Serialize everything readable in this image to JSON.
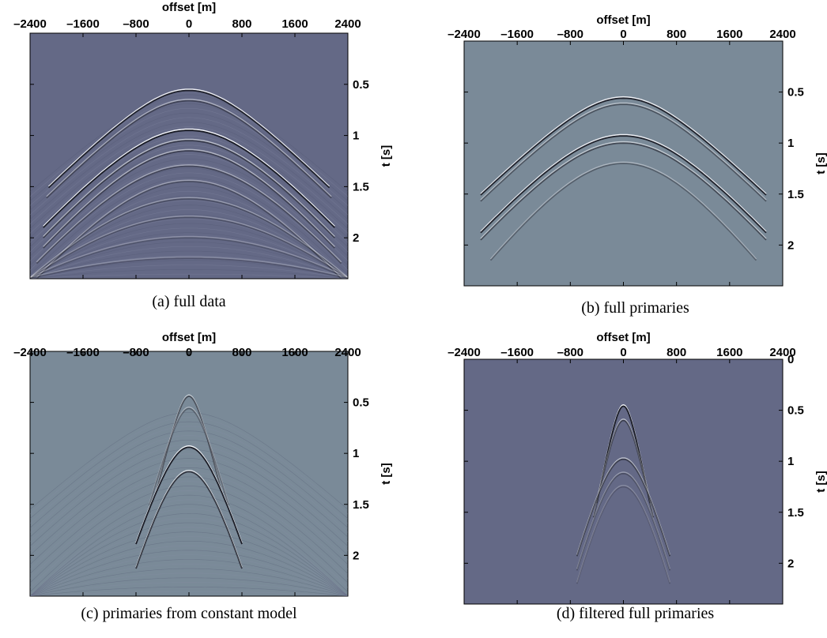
{
  "colors": {
    "bg_dark": "#646986",
    "bg_light": "#7a8a98"
  },
  "chart_data": [
    {
      "type": "heatmap",
      "caption": "(a) full data",
      "xlabel": "offset [m]",
      "ylabel": "t [s]",
      "x_ticks": [
        "–2400",
        "–1600",
        "–800",
        "0",
        "800",
        "1600",
        "2400"
      ],
      "y_ticks": [
        "0.5",
        "1",
        "1.5",
        "2"
      ],
      "xlim": [
        -2400,
        2400
      ],
      "ylim": [
        0,
        2.4
      ],
      "background": "#646986",
      "events": [
        {
          "t0": 0.56,
          "hmax": 2120,
          "amp": 0.85
        },
        {
          "t0": 0.66,
          "hmax": 2150,
          "amp": 0.4
        },
        {
          "t0": 0.95,
          "hmax": 2200,
          "amp": 0.9
        },
        {
          "t0": 1.05,
          "hmax": 2200,
          "amp": 0.5
        },
        {
          "t0": 1.15,
          "hmax": 2200,
          "amp": 0.45
        },
        {
          "t0": 1.3,
          "hmax": 2300,
          "amp": 0.35
        },
        {
          "t0": 1.45,
          "hmax": 2300,
          "amp": 0.3
        },
        {
          "t0": 1.62,
          "hmax": 2400,
          "amp": 0.25
        },
        {
          "t0": 1.8,
          "hmax": 2400,
          "amp": 0.2
        },
        {
          "t0": 2.0,
          "hmax": 2400,
          "amp": 0.18
        },
        {
          "t0": 2.2,
          "hmax": 2400,
          "amp": 0.15
        }
      ]
    },
    {
      "type": "heatmap",
      "caption": "(b) full primaries",
      "xlabel": "offset [m]",
      "ylabel": "t [s]",
      "x_ticks": [
        "–2400",
        "–1600",
        "–800",
        "0",
        "800",
        "1600",
        "2400"
      ],
      "y_ticks": [
        "0.5",
        "1",
        "1.5",
        "2"
      ],
      "xlim": [
        -2400,
        2400
      ],
      "ylim": [
        0,
        2.4
      ],
      "background": "#7a8a98",
      "events": [
        {
          "t0": 0.56,
          "hmax": 2150,
          "amp": 0.85
        },
        {
          "t0": 0.62,
          "hmax": 2150,
          "amp": 0.4
        },
        {
          "t0": 0.93,
          "hmax": 2150,
          "amp": 0.85
        },
        {
          "t0": 1.0,
          "hmax": 2150,
          "amp": 0.5
        },
        {
          "t0": 1.2,
          "hmax": 2000,
          "amp": 0.3
        }
      ]
    },
    {
      "type": "heatmap",
      "caption": "(c) primaries from constant model",
      "xlabel": "offset [m]",
      "ylabel": "t [s]",
      "x_ticks": [
        "–2400",
        "–1600",
        "–800",
        "0",
        "800",
        "1600",
        "2400"
      ],
      "y_ticks": [
        "0.5",
        "1",
        "1.5",
        "2"
      ],
      "xlim": [
        -2400,
        2400
      ],
      "ylim": [
        0,
        2.4
      ],
      "background": "#7a8a98",
      "events": [
        {
          "t0": 0.44,
          "hmax": 500,
          "amp": 0.5
        },
        {
          "t0": 0.56,
          "hmax": 600,
          "amp": 0.3
        },
        {
          "t0": 0.94,
          "hmax": 800,
          "amp": 1.0
        },
        {
          "t0": 1.18,
          "hmax": 800,
          "amp": 0.7
        }
      ]
    },
    {
      "type": "heatmap",
      "caption": "(d) filtered full primaries",
      "xlabel": "offset [m]",
      "ylabel": "t [s]",
      "x_ticks": [
        "–2400",
        "–1600",
        "–800",
        "0",
        "800",
        "1600",
        "2400"
      ],
      "y_ticks": [
        "0",
        "0.5",
        "1",
        "1.5",
        "2"
      ],
      "xlim": [
        -2400,
        2400
      ],
      "ylim": [
        0,
        2.4
      ],
      "background": "#646986",
      "events": [
        {
          "t0": 0.46,
          "hmax": 400,
          "amp": 1.0
        },
        {
          "t0": 0.6,
          "hmax": 450,
          "amp": 0.5
        },
        {
          "t0": 0.98,
          "hmax": 700,
          "amp": 0.5
        },
        {
          "t0": 1.12,
          "hmax": 700,
          "amp": 0.25
        },
        {
          "t0": 1.25,
          "hmax": 700,
          "amp": 0.15
        }
      ]
    }
  ]
}
